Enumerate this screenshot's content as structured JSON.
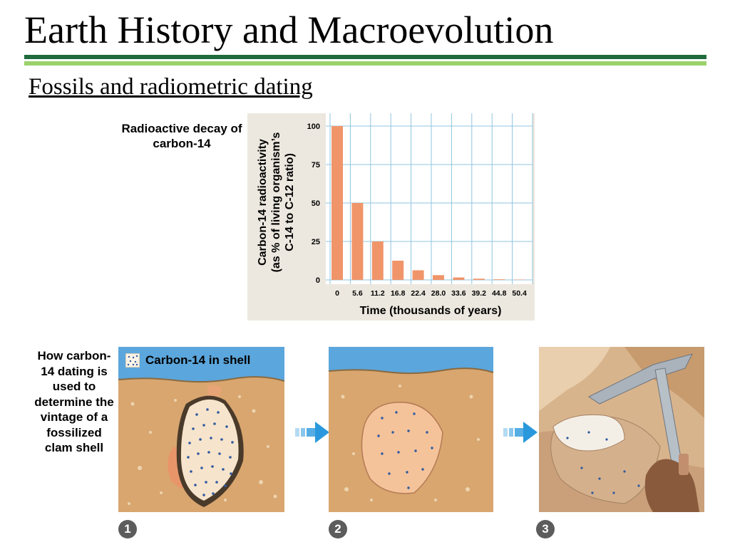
{
  "title": "Earth History and Macroevolution",
  "subtitle": "Fossils and radiometric dating",
  "chart_label": "Radioactive decay of carbon-14",
  "chart_data": {
    "type": "bar",
    "categories": [
      "0",
      "5.6",
      "11.2",
      "16.8",
      "22.4",
      "28.0",
      "33.6",
      "39.2",
      "44.8",
      "50.4"
    ],
    "values": [
      100,
      50,
      25,
      12.5,
      6.25,
      3.1,
      1.6,
      0.8,
      0.4,
      0.2
    ],
    "xlabel": "Time (thousands of years)",
    "ylabel_lines": [
      "Carbon-14 radioactivity",
      "(as % of living organism’s",
      "C-14 to C-12 ratio)"
    ],
    "yticks": [
      "0",
      "25",
      "50",
      "75",
      "100"
    ],
    "ylim": [
      0,
      100
    ],
    "grid": true,
    "colors": {
      "bar": "#f0956a",
      "grid": "#8fc5e0",
      "panel": "#ede8df",
      "plot": "#ffffff"
    }
  },
  "how_label": "How carbon-14 dating is used to determine the vintage of a fossilized clam shell",
  "legend": {
    "label": "Carbon-14 in shell",
    "icon": "dotted-square-icon"
  },
  "steps": [
    "1",
    "2",
    "3"
  ],
  "arrow_icon": "right-arrow-icon",
  "colors": {
    "title_rule_dark": "#1f6b3e",
    "title_rule_light": "#9bd16b",
    "water": "#5ba6dc",
    "sand": "#d9a66f",
    "arrow": "#2a98dc"
  }
}
